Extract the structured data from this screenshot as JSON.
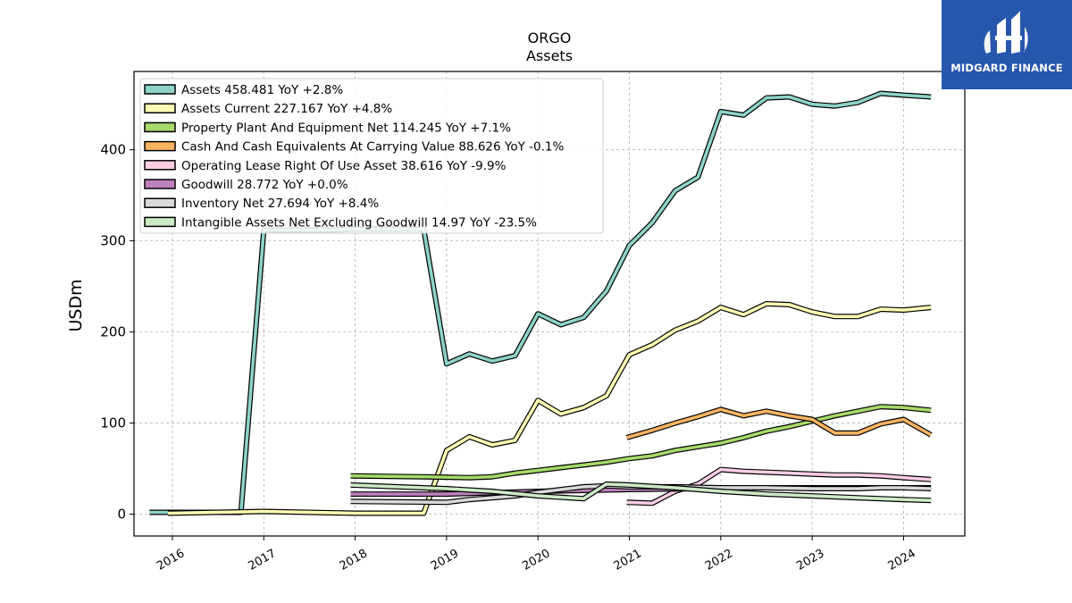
{
  "chart_data": {
    "type": "line",
    "title": "ORGO",
    "subtitle": "Assets",
    "ylabel": "USDm",
    "xlabel": "",
    "ylim": [
      -24,
      486
    ],
    "xlim": [
      2015.58,
      2024.67
    ],
    "yticks": [
      0,
      100,
      200,
      300,
      400
    ],
    "xticks": [
      "2016",
      "2017",
      "2018",
      "2019",
      "2020",
      "2021",
      "2022",
      "2023",
      "2024"
    ],
    "grid": true,
    "legend_position": "top-left",
    "series": [
      {
        "name": "Assets",
        "legend": "Assets  458.481 YoY +2.8%",
        "color": "#8dd3c7",
        "x": [
          2015.75,
          2016.75,
          2017.0,
          2017.25,
          2017.5,
          2017.75,
          2018.0,
          2018.25,
          2018.5,
          2018.75,
          2019.0,
          2019.25,
          2019.5,
          2019.75,
          2020.0,
          2020.25,
          2020.5,
          2020.75,
          2021.0,
          2021.25,
          2021.5,
          2021.75,
          2022.0,
          2022.25,
          2022.5,
          2022.75,
          2023.0,
          2023.25,
          2023.5,
          2023.75,
          2024.0,
          2024.3
        ],
        "y": [
          2,
          2,
          312,
          312,
          312,
          312,
          313,
          313,
          313,
          313,
          165,
          176,
          168,
          174,
          220,
          208,
          216,
          245,
          295,
          320,
          355,
          370,
          442,
          438,
          457,
          458,
          450,
          448,
          452,
          462,
          460,
          458
        ]
      },
      {
        "name": "Assets Current",
        "legend": "Assets Current  227.167 YoY +4.8%",
        "color": "#ffffb3",
        "x": [
          2015.95,
          2017.0,
          2018.0,
          2018.75,
          2019.0,
          2019.25,
          2019.5,
          2019.75,
          2020.0,
          2020.25,
          2020.5,
          2020.75,
          2021.0,
          2021.25,
          2021.5,
          2021.75,
          2022.0,
          2022.25,
          2022.5,
          2022.75,
          2023.0,
          2023.25,
          2023.5,
          2023.75,
          2024.0,
          2024.3
        ],
        "y": [
          1,
          3,
          1,
          1,
          70,
          85,
          76,
          81,
          125,
          110,
          117,
          130,
          175,
          186,
          202,
          212,
          227,
          219,
          231,
          230,
          222,
          217,
          217,
          225,
          224,
          227
        ]
      },
      {
        "name": "Property Plant And Equipment Net",
        "legend": "Property Plant And Equipment Net  114.245 YoY +7.1%",
        "color": "#a6d96a",
        "x": [
          2017.95,
          2018.75,
          2019.25,
          2019.5,
          2019.75,
          2020.0,
          2020.25,
          2020.5,
          2020.75,
          2021.0,
          2021.25,
          2021.5,
          2021.75,
          2022.0,
          2022.25,
          2022.5,
          2022.75,
          2023.0,
          2023.25,
          2023.5,
          2023.75,
          2024.0,
          2024.3
        ],
        "y": [
          42,
          41,
          40,
          41,
          45,
          48,
          51,
          54,
          57,
          61,
          64,
          70,
          74,
          78,
          84,
          91,
          96,
          102,
          108,
          113,
          118,
          117,
          114
        ]
      },
      {
        "name": "Cash And Cash Equivalents At Carrying Value",
        "legend": "Cash And Cash Equivalents At Carrying Value  88.626 YoY -0.1%",
        "color": "#fdb462",
        "x": [
          2020.97,
          2021.25,
          2021.5,
          2021.75,
          2022.0,
          2022.25,
          2022.5,
          2022.75,
          2023.0,
          2023.25,
          2023.5,
          2023.75,
          2024.0,
          2024.3
        ],
        "y": [
          84,
          92,
          100,
          107,
          115,
          108,
          113,
          108,
          104,
          89,
          89,
          99,
          104,
          87
        ]
      },
      {
        "name": "Operating Lease Right Of Use Asset",
        "legend": "Operating Lease Right Of Use Asset  38.616 YoY -9.9%",
        "color": "#fccde5",
        "x": [
          2020.97,
          2021.25,
          2021.5,
          2021.75,
          2022.0,
          2022.25,
          2022.5,
          2022.75,
          2023.0,
          2023.25,
          2023.5,
          2023.75,
          2024.0,
          2024.3
        ],
        "y": [
          13,
          12,
          25,
          33,
          49,
          47,
          46,
          45,
          44,
          43,
          43,
          42,
          40,
          38
        ]
      },
      {
        "name": "Goodwill",
        "legend": "Goodwill  28.772 YoY +0.0%",
        "color": "#bc80bd",
        "x": [
          2017.95,
          2019.0,
          2020.0,
          2021.0,
          2021.75,
          2022.25,
          2023.0,
          2024.3
        ],
        "y": [
          22,
          22,
          25,
          27,
          28,
          29,
          29,
          29
        ]
      },
      {
        "name": "Inventory Net",
        "legend": "Inventory Net  27.694 YoY +8.4%",
        "color": "#d9d9d9",
        "x": [
          2017.95,
          2019.0,
          2019.25,
          2019.5,
          2019.75,
          2020.0,
          2020.25,
          2020.5,
          2020.75,
          2021.0,
          2021.5,
          2022.0,
          2022.5,
          2023.0,
          2023.5,
          2023.75,
          2024.0,
          2024.3
        ],
        "y": [
          14,
          13,
          16,
          18,
          20,
          24,
          27,
          30,
          31,
          30,
          30,
          29,
          29,
          28,
          28,
          29,
          29,
          28
        ]
      },
      {
        "name": "Intangible Assets Net Excluding Goodwill",
        "legend": "Intangible Assets Net Excluding Goodwill  14.97 YoY -23.5%",
        "color": "#ccebc5",
        "x": [
          2017.95,
          2019.0,
          2019.5,
          2020.0,
          2020.5,
          2020.75,
          2021.0,
          2021.5,
          2022.0,
          2022.5,
          2023.0,
          2023.5,
          2024.0,
          2024.3
        ],
        "y": [
          32,
          28,
          25,
          20,
          17,
          33,
          32,
          29,
          25,
          22,
          20,
          18,
          16,
          15
        ]
      }
    ]
  },
  "logo": {
    "brand": "MIDGARD FINANCE",
    "icon": "midgard-logo-icon"
  }
}
